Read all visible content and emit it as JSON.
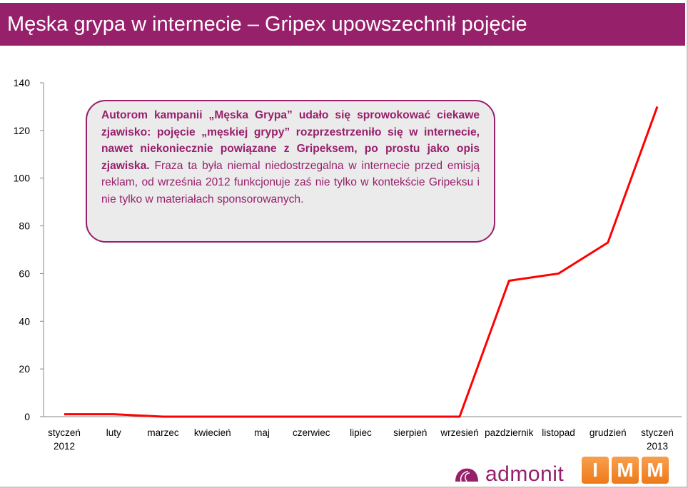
{
  "header": {
    "title": "Męska grypa w internecie – Gripex upowszechnił pojęcie"
  },
  "callout": {
    "bold_text": "Autorom kampanii „Męska Grypa” udało się sprowokować ciekawe zjawisko: pojęcie „męskiej grypy” rozprzestrzeniło się w internecie, nawet niekoniecznie powiązane z Gripeksem, po prostu jako opis zjawiska.",
    "normal_text": " Fraza ta była niemal niedostrzegalna w internecie przed emisją reklam, od września 2012 funkcjonuje zaś nie tylko w kontekście Gripeksu i nie tylko w materiałach sponsorowanych."
  },
  "logos": {
    "admonit": "admonit",
    "imm": [
      "I",
      "M",
      "M"
    ]
  },
  "colors": {
    "brand": "#97206b",
    "line": "#ff0000",
    "imm": "#f08a2a"
  },
  "chart_data": {
    "type": "line",
    "categories": [
      "styczeń\n2012",
      "luty",
      "marzec",
      "kwiecień",
      "maj",
      "czerwiec",
      "lipiec",
      "sierpień",
      "wrzesień",
      "pazdziernik",
      "listopad",
      "grudzień",
      "styczeń\n2013"
    ],
    "values": [
      1,
      1,
      0,
      0,
      0,
      0,
      0,
      0,
      0,
      57,
      60,
      73,
      130
    ],
    "ylim": [
      0,
      140
    ],
    "yticks": [
      0,
      20,
      40,
      60,
      80,
      100,
      120,
      140
    ],
    "grid": false,
    "legend": "none",
    "title": "",
    "xlabel": "",
    "ylabel": ""
  }
}
